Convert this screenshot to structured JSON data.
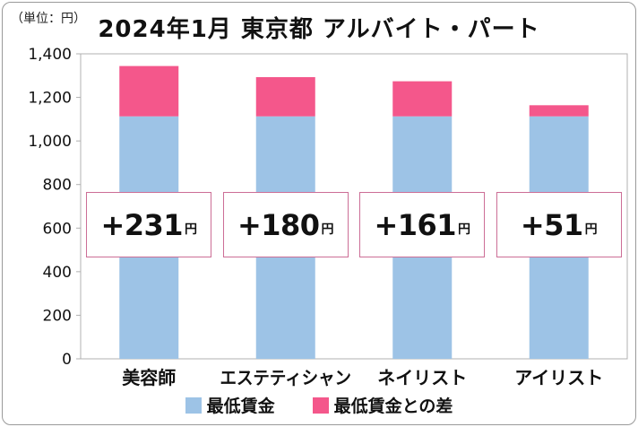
{
  "unit_label": "（単位：円）",
  "title": "2024年1月 東京都 アルバイト・パート",
  "colors": {
    "min_wage": "#9dc3e6",
    "difference": "#f4578b",
    "box_border": "#cc6e96",
    "grid": "#b0b0b0"
  },
  "chart_data": {
    "type": "bar",
    "stacked": true,
    "categories": [
      "美容師",
      "エステティシャン",
      "ネイリスト",
      "アイリスト"
    ],
    "series": [
      {
        "name": "最低賃金",
        "values": [
          1113,
          1113,
          1113,
          1113
        ]
      },
      {
        "name": "最低賃金との差",
        "values": [
          231,
          180,
          161,
          51
        ]
      }
    ],
    "ylim": [
      0,
      1400
    ],
    "yticks": [
      "0",
      "200",
      "400",
      "600",
      "800",
      "1,000",
      "1,200",
      "1,400"
    ],
    "grid": false,
    "legend_position": "bottom"
  },
  "annotations": [
    {
      "number": "+231",
      "unit": "円"
    },
    {
      "number": "+180",
      "unit": "円"
    },
    {
      "number": "+161",
      "unit": "円"
    },
    {
      "number": "+51",
      "unit": "円"
    }
  ],
  "legend": [
    {
      "label": "最低賃金"
    },
    {
      "label": "最低賃金との差"
    }
  ]
}
